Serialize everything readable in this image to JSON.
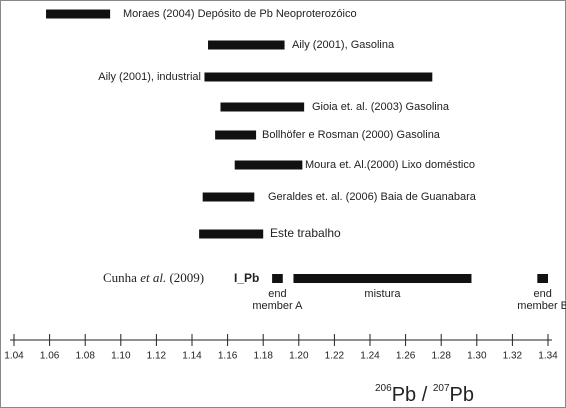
{
  "chart_data": {
    "type": "range",
    "ranges": [
      {
        "name": "Moraes (2004)  Depósito de Pb Neoproterozóico",
        "start": 1.058,
        "end": 1.094
      },
      {
        "name": "Aily (2001),  Gasolina",
        "start": 1.149,
        "end": 1.192
      },
      {
        "name": "Aily (2001), industrial",
        "start": 1.147,
        "end": 1.275
      },
      {
        "name": "Gioia et. al. (2003)  Gasolina",
        "start": 1.156,
        "end": 1.203
      },
      {
        "name": "Bollhöfer e Rosman (2000) Gasolina",
        "start": 1.153,
        "end": 1.176
      },
      {
        "name": "Moura et. Al.(2000)  Lixo doméstico",
        "start": 1.164,
        "end": 1.202
      },
      {
        "name": "Geraldes et. al. (2006)  Baia de Guanabara",
        "start": 1.146,
        "end": 1.175
      },
      {
        "name": "Este trabalho",
        "start": 1.144,
        "end": 1.18
      }
    ],
    "group": {
      "label_parts": [
        "Cunha ",
        "et al.",
        " (2009)"
      ],
      "tag": "I_Pb",
      "segments": [
        {
          "name_lines": [
            "end",
            "member A"
          ],
          "start": 1.185,
          "end": 1.191
        },
        {
          "name_lines": [
            "mistura"
          ],
          "start": 1.197,
          "end": 1.297
        },
        {
          "name_lines": [
            "end",
            "member B"
          ],
          "start": 1.334,
          "end": 1.34
        }
      ]
    },
    "x_label_parts": [
      "206",
      "Pb",
      " / ",
      "207",
      "Pb"
    ],
    "xlim": [
      1.04,
      1.34
    ],
    "xticks": [
      1.04,
      1.06,
      1.08,
      {
        "value": 1.1,
        "label": "1.10"
      },
      1.12,
      1.14,
      1.16,
      1.18,
      {
        "value": 1.2,
        "label": "1.20"
      },
      1.22,
      1.24,
      1.26,
      1.28,
      {
        "value": 1.3,
        "label": "1.30"
      },
      1.32,
      1.34
    ],
    "color": "#111111"
  }
}
